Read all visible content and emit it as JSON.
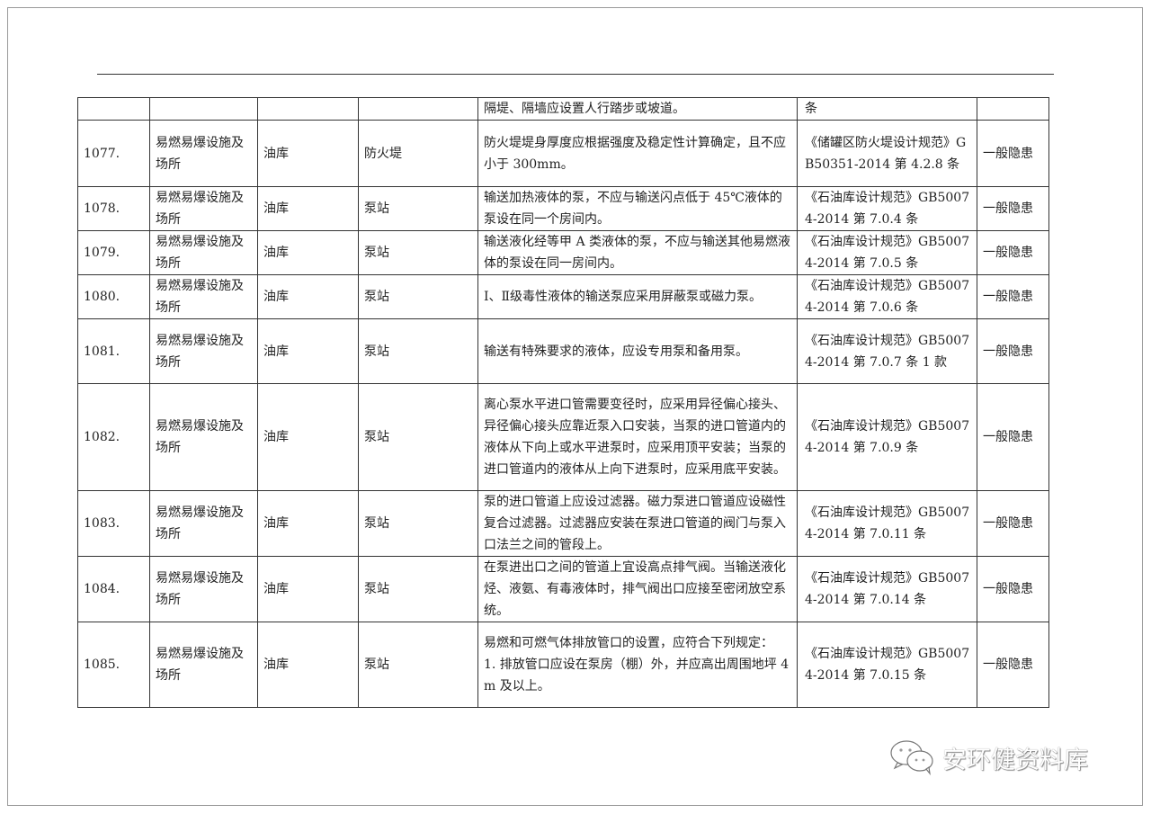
{
  "rows": [
    {
      "no": "",
      "category": "",
      "place": "",
      "item": "",
      "content": "隔堤、隔墙应设置人行踏步或坡道。",
      "standard": "条",
      "level": ""
    },
    {
      "no": "1077.",
      "category": "易燃易爆设施及场所",
      "place": "油库",
      "item": "防火堤",
      "content": "防火堤堤身厚度应根据强度及稳定性计算确定，且不应小于 300mm。",
      "standard": "《储罐区防火堤设计规范》GB50351-2014 第 4.2.8 条",
      "level": "一般隐患"
    },
    {
      "no": "1078.",
      "category": "易燃易爆设施及场所",
      "place": "油库",
      "item": "泵站",
      "content": "输送加热液体的泵，不应与输送闪点低于 45℃液体的泵设在同一个房间内。",
      "standard": "《石油库设计规范》GB50074-2014 第 7.0.4 条",
      "level": "一般隐患"
    },
    {
      "no": "1079.",
      "category": "易燃易爆设施及场所",
      "place": "油库",
      "item": "泵站",
      "content": "输送液化经等甲 A 类液体的泵，不应与输送其他易燃液体的泵设在同一房间内。",
      "standard": "《石油库设计规范》GB50074-2014 第 7.0.5 条",
      "level": "一般隐患"
    },
    {
      "no": "1080.",
      "category": "易燃易爆设施及场所",
      "place": "油库",
      "item": "泵站",
      "content": "Ⅰ、Ⅱ级毒性液体的输送泵应采用屏蔽泵或磁力泵。",
      "standard": "《石油库设计规范》GB50074-2014 第 7.0.6 条",
      "level": "一般隐患"
    },
    {
      "no": "1081.",
      "category": "易燃易爆设施及场所",
      "place": "油库",
      "item": "泵站",
      "content": "输送有特殊要求的液体，应设专用泵和备用泵。",
      "standard": "《石油库设计规范》GB50074-2014 第 7.0.7 条 1 款",
      "level": "一般隐患"
    },
    {
      "no": "1082.",
      "category": "易燃易爆设施及场所",
      "place": "油库",
      "item": "泵站",
      "content": "离心泵水平进口管需要变径时，应采用异径偏心接头、异径偏心接头应靠近泵入口安装，当泵的进口管道内的液体从下向上或水平进泵时，应采用顶平安装；当泵的进口管道内的液体从上向下进泵时，应采用底平安装。",
      "standard": "《石油库设计规范》GB50074-2014 第 7.0.9 条",
      "level": "一般隐患"
    },
    {
      "no": "1083.",
      "category": "易燃易爆设施及场所",
      "place": "油库",
      "item": "泵站",
      "content": "泵的进口管道上应设过滤器。磁力泵进口管道应设磁性复合过滤器。过滤器应安装在泵进口管道的阀门与泵入口法兰之间的管段上。",
      "standard": "《石油库设计规范》GB50074-2014 第 7.0.11 条",
      "level": "一般隐患"
    },
    {
      "no": "1084.",
      "category": "易燃易爆设施及场所",
      "place": "油库",
      "item": "泵站",
      "content": "在泵进出口之间的管道上宜设高点排气阀。当输送液化烃、液氨、有毒液体时，排气阀出口应接至密闭放空系统。",
      "standard": "《石油库设计规范》GB50074-2014 第 7.0.14 条",
      "level": "一般隐患"
    },
    {
      "no": "1085.",
      "category": "易燃易爆设施及场所",
      "place": "油库",
      "item": "泵站",
      "content": "易燃和可燃气体排放管口的设置，应符合下列规定：\n1. 排放管口应设在泵房（棚）外，并应高出周围地坪 4m 及以上。",
      "standard": "《石油库设计规范》GB50074-2014 第 7.0.15 条",
      "level": "一般隐患"
    }
  ],
  "watermark": {
    "text": "安环健资料库",
    "icon": "wechat-icon"
  }
}
